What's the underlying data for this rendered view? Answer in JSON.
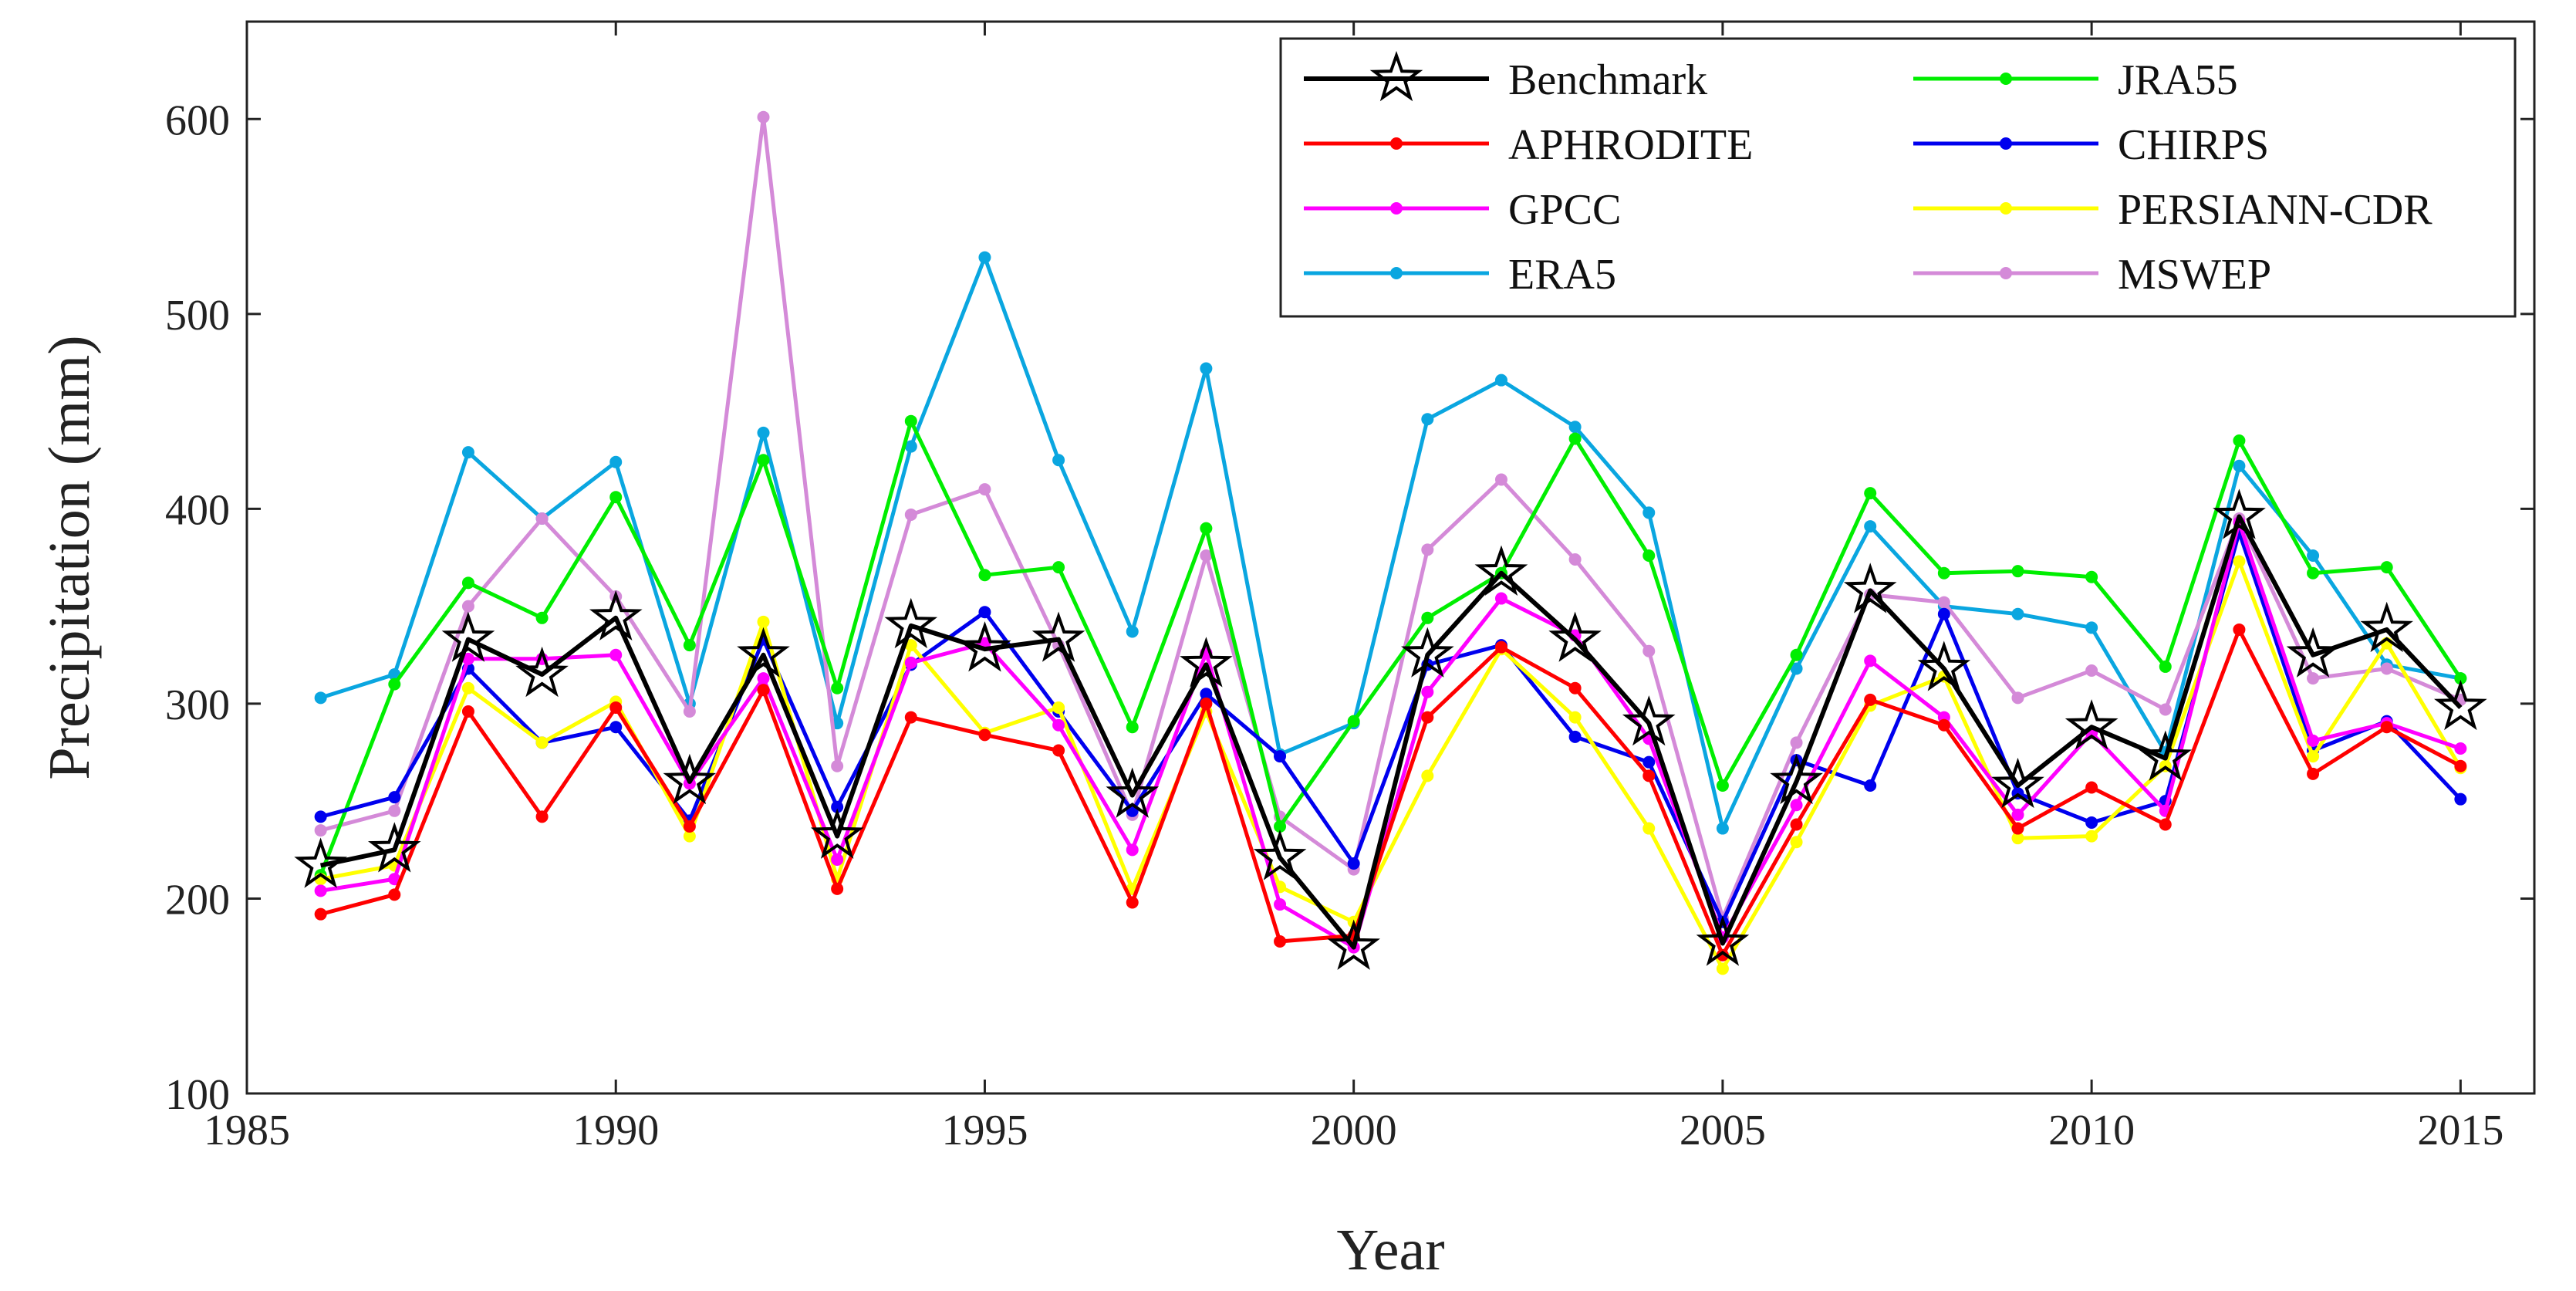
{
  "chart_data": {
    "type": "line",
    "title": "",
    "xlabel": "Year",
    "ylabel": "Precipitation (mm)",
    "xlim": [
      1985,
      2016
    ],
    "ylim": [
      100,
      650
    ],
    "xticks": [
      1985,
      1990,
      1995,
      2000,
      2005,
      2010,
      2015
    ],
    "yticks": [
      100,
      200,
      300,
      400,
      500,
      600
    ],
    "grid": false,
    "legend_position": "top-right",
    "x": [
      1986,
      1987,
      1988,
      1989,
      1990,
      1991,
      1992,
      1993,
      1994,
      1995,
      1996,
      1997,
      1998,
      1999,
      2000,
      2001,
      2002,
      2003,
      2004,
      2005,
      2006,
      2007,
      2008,
      2009,
      2010,
      2011,
      2012,
      2013,
      2014,
      2015
    ],
    "series": [
      {
        "name": "Benchmark",
        "color": "#000000",
        "marker": "star",
        "values": [
          217,
          225,
          333,
          315,
          344,
          260,
          325,
          232,
          340,
          328,
          333,
          253,
          320,
          221,
          175,
          325,
          367,
          333,
          290,
          177,
          260,
          358,
          318,
          258,
          288,
          272,
          396,
          325,
          338,
          298
        ]
      },
      {
        "name": "APHRODITE",
        "color": "#ff0000",
        "marker": "dot",
        "values": [
          192,
          202,
          296,
          242,
          298,
          237,
          307,
          205,
          293,
          284,
          276,
          198,
          300,
          178,
          181,
          293,
          329,
          308,
          263,
          171,
          238,
          302,
          289,
          236,
          257,
          238,
          338,
          264,
          288,
          268
        ]
      },
      {
        "name": "GPCC",
        "color": "#ff00ff",
        "marker": "dot",
        "values": [
          204,
          210,
          323,
          323,
          325,
          259,
          313,
          220,
          321,
          331,
          289,
          225,
          326,
          197,
          175,
          306,
          354,
          335,
          282,
          180,
          248,
          322,
          293,
          243,
          285,
          245,
          393,
          281,
          290,
          277
        ]
      },
      {
        "name": "ERA5",
        "color": "#0aa6e0",
        "marker": "dot",
        "values": [
          303,
          315,
          429,
          395,
          424,
          300,
          439,
          290,
          432,
          529,
          425,
          337,
          472,
          274,
          290,
          446,
          466,
          442,
          398,
          236,
          318,
          391,
          350,
          346,
          339,
          275,
          422,
          376,
          320,
          313
        ]
      },
      {
        "name": "JRA55",
        "color": "#00ee00",
        "marker": "dot",
        "values": [
          212,
          310,
          362,
          344,
          406,
          330,
          425,
          308,
          445,
          366,
          370,
          288,
          390,
          237,
          291,
          344,
          367,
          436,
          376,
          258,
          325,
          408,
          367,
          368,
          365,
          319,
          435,
          367,
          370,
          313
        ]
      },
      {
        "name": "CHIRPS",
        "color": "#0000ee",
        "marker": "dot",
        "values": [
          242,
          252,
          318,
          280,
          288,
          240,
          333,
          247,
          320,
          347,
          296,
          245,
          305,
          273,
          218,
          320,
          330,
          283,
          270,
          188,
          271,
          258,
          346,
          254,
          239,
          250,
          388,
          276,
          291,
          251
        ]
      },
      {
        "name": "PERSIANN-CDR",
        "color": "#ffff00",
        "marker": "dot",
        "values": [
          210,
          217,
          308,
          280,
          301,
          232,
          342,
          210,
          330,
          285,
          298,
          205,
          296,
          206,
          188,
          263,
          328,
          293,
          236,
          164,
          229,
          299,
          314,
          231,
          232,
          268,
          373,
          273,
          331,
          267
        ]
      },
      {
        "name": "MSWEP",
        "color": "#d48ad8",
        "marker": "dot",
        "values": [
          235,
          245,
          350,
          395,
          355,
          296,
          601,
          268,
          397,
          410,
          330,
          243,
          376,
          242,
          215,
          379,
          415,
          374,
          327,
          190,
          280,
          356,
          352,
          303,
          317,
          297,
          395,
          313,
          318,
          302
        ]
      }
    ]
  }
}
